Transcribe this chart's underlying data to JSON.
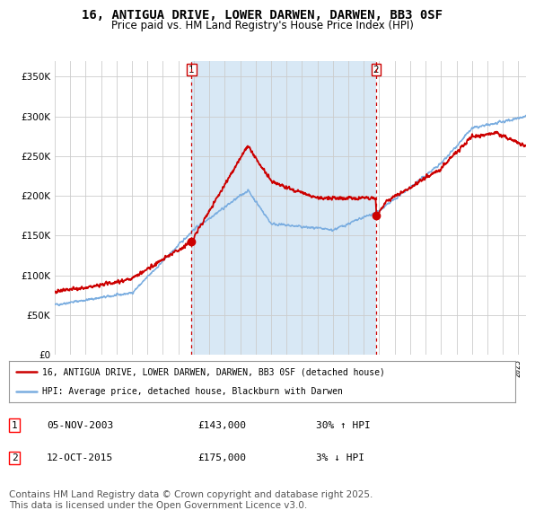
{
  "title": "16, ANTIGUA DRIVE, LOWER DARWEN, DARWEN, BB3 0SF",
  "subtitle": "Price paid vs. HM Land Registry's House Price Index (HPI)",
  "ylim": [
    0,
    370000
  ],
  "yticks": [
    0,
    50000,
    100000,
    150000,
    200000,
    250000,
    300000,
    350000
  ],
  "xlim_start": 1995.0,
  "xlim_end": 2025.5,
  "legend_line1": "16, ANTIGUA DRIVE, LOWER DARWEN, DARWEN, BB3 0SF (detached house)",
  "legend_line2": "HPI: Average price, detached house, Blackburn with Darwen",
  "transaction1_date": "05-NOV-2003",
  "transaction1_price": "£143,000",
  "transaction1_hpi": "30% ↑ HPI",
  "transaction1_year": 2003.85,
  "transaction2_date": "12-OCT-2015",
  "transaction2_price": "£175,000",
  "transaction2_hpi": "3% ↓ HPI",
  "transaction2_year": 2015.79,
  "line_color_red": "#cc0000",
  "line_color_blue": "#7aade0",
  "vline_color": "#cc0000",
  "plot_bg_color": "#ffffff",
  "shade_color": "#d8e8f5",
  "footer": "Contains HM Land Registry data © Crown copyright and database right 2025.\nThis data is licensed under the Open Government Licence v3.0.",
  "copyright_fontsize": 7.5,
  "title_fontsize": 10,
  "subtitle_fontsize": 8.5
}
